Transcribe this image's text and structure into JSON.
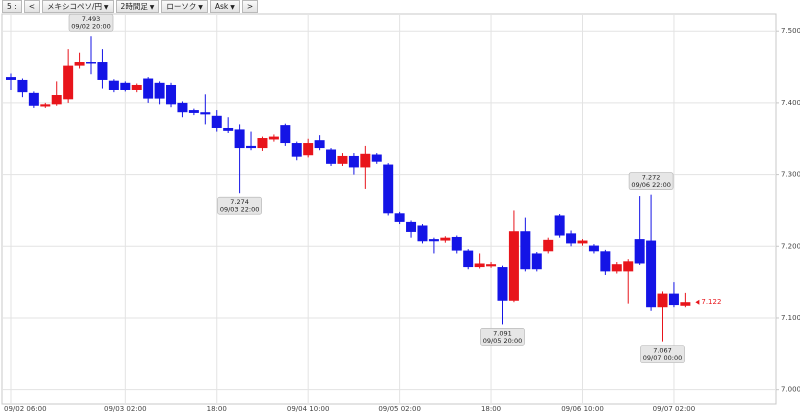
{
  "toolbar": [
    "5 :",
    "<",
    "メキシコペソ/円",
    "2時間足",
    "ローソク",
    "Ask",
    ">"
  ],
  "chart_data": {
    "type": "candlestick",
    "categories": [
      "09/02 06:00",
      null,
      null,
      null,
      null,
      null,
      null,
      null,
      null,
      null,
      "09/03 02:00",
      null,
      null,
      null,
      null,
      null,
      null,
      null,
      "18:00",
      null,
      null,
      null,
      null,
      null,
      null,
      null,
      "09/04 10:00",
      null,
      null,
      null,
      null,
      null,
      null,
      null,
      "09/05 02:00",
      null,
      null,
      null,
      null,
      null,
      null,
      null,
      "18:00",
      null,
      null,
      null,
      null,
      null,
      null,
      null,
      "09/06 10:00",
      null,
      null,
      null,
      null,
      null,
      null,
      null,
      "09/07 02:00",
      null
    ],
    "series": [
      {
        "up_color": "#e8141b",
        "down_color": "#1414e6",
        "open": [
          7.436,
          7.432,
          7.414,
          7.395,
          7.398,
          7.405,
          7.452,
          7.457,
          7.457,
          7.431,
          7.428,
          7.418,
          7.434,
          7.428,
          7.425,
          7.4,
          7.39,
          7.387,
          7.382,
          7.365,
          7.363,
          7.34,
          7.337,
          7.349,
          7.369,
          7.344,
          7.327,
          7.348,
          7.335,
          7.315,
          7.326,
          7.31,
          7.328,
          7.314,
          7.246,
          7.234,
          7.229,
          7.21,
          7.208,
          7.213,
          7.194,
          7.171,
          7.172,
          7.171,
          7.124,
          7.221,
          7.19,
          7.193,
          7.243,
          7.218,
          7.204,
          7.201,
          7.193,
          7.165,
          7.165,
          7.21,
          7.208,
          7.115,
          7.134,
          7.117
        ],
        "high": [
          7.441,
          7.434,
          7.416,
          7.4,
          7.43,
          7.475,
          7.47,
          7.493,
          7.475,
          7.433,
          7.43,
          7.427,
          7.436,
          7.43,
          7.428,
          7.402,
          7.392,
          7.412,
          7.39,
          7.38,
          7.37,
          7.36,
          7.353,
          7.356,
          7.371,
          7.346,
          7.35,
          7.355,
          7.337,
          7.33,
          7.33,
          7.34,
          7.33,
          7.316,
          7.248,
          7.236,
          7.231,
          7.212,
          7.214,
          7.215,
          7.196,
          7.19,
          7.178,
          7.173,
          7.25,
          7.24,
          7.192,
          7.212,
          7.245,
          7.222,
          7.21,
          7.203,
          7.195,
          7.178,
          7.182,
          7.27,
          7.272,
          7.137,
          7.15,
          7.135
        ],
        "low": [
          7.418,
          7.408,
          7.393,
          7.393,
          7.396,
          7.4,
          7.448,
          7.44,
          7.42,
          7.415,
          7.416,
          7.415,
          7.4,
          7.398,
          7.394,
          7.38,
          7.383,
          7.37,
          7.36,
          7.358,
          7.274,
          7.334,
          7.333,
          7.346,
          7.34,
          7.32,
          7.324,
          7.334,
          7.312,
          7.312,
          7.3,
          7.28,
          7.315,
          7.243,
          7.231,
          7.212,
          7.204,
          7.19,
          7.205,
          7.19,
          7.168,
          7.169,
          7.17,
          7.091,
          7.122,
          7.165,
          7.165,
          7.19,
          7.212,
          7.2,
          7.201,
          7.19,
          7.16,
          7.162,
          7.12,
          7.174,
          7.11,
          7.067,
          7.115,
          7.115
        ],
        "close": [
          7.432,
          7.415,
          7.396,
          7.398,
          7.411,
          7.452,
          7.457,
          7.455,
          7.432,
          7.418,
          7.418,
          7.425,
          7.406,
          7.406,
          7.398,
          7.387,
          7.386,
          7.384,
          7.365,
          7.361,
          7.337,
          7.337,
          7.351,
          7.353,
          7.344,
          7.325,
          7.344,
          7.337,
          7.315,
          7.326,
          7.31,
          7.329,
          7.318,
          7.246,
          7.234,
          7.22,
          7.207,
          7.207,
          7.212,
          7.194,
          7.171,
          7.176,
          7.175,
          7.124,
          7.221,
          7.168,
          7.168,
          7.209,
          7.215,
          7.204,
          7.208,
          7.193,
          7.165,
          7.175,
          7.179,
          7.176,
          7.115,
          7.134,
          7.118,
          7.122
        ]
      }
    ],
    "ylim": [
      6.98,
      7.524
    ],
    "yticks": [
      {
        "value": 7.0,
        "label": "7.000"
      },
      {
        "value": 7.1,
        "label": "7.100"
      },
      {
        "value": 7.2,
        "label": "7.200"
      },
      {
        "value": 7.3,
        "label": "7.300"
      },
      {
        "value": 7.4,
        "label": "7.400"
      },
      {
        "value": 7.5,
        "label": "7.500"
      }
    ],
    "grid": true,
    "annotations": [
      {
        "value": 7.493,
        "time": "09/02 20:00"
      },
      {
        "value": 7.274,
        "time": "09/03 22:00"
      },
      {
        "value": 7.091,
        "time": "09/05 20:00"
      },
      {
        "value": 7.272,
        "time": "09/06 22:00"
      },
      {
        "value": 7.067,
        "time": "09/07 00:00"
      }
    ],
    "current": 7.122,
    "current_color": "#e8141b"
  }
}
